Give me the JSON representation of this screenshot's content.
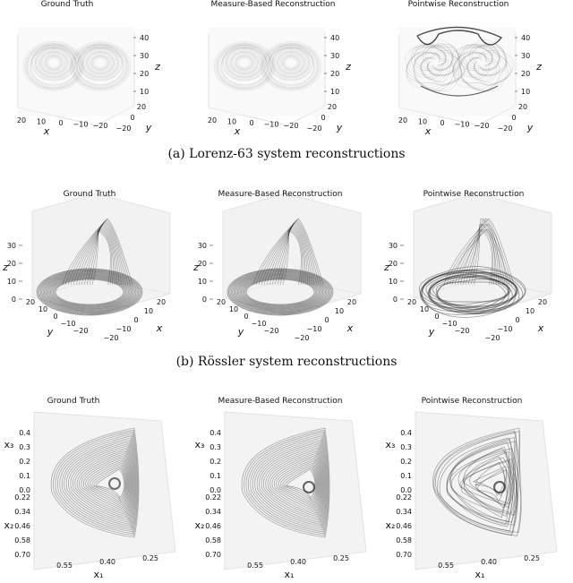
{
  "rows": [
    {
      "caption": "(a) Lorenz-63 system reconstructions",
      "panels": [
        {
          "title": "Ground Truth",
          "kind": "lorenz-gt"
        },
        {
          "title": "Measure-Based Reconstruction",
          "kind": "lorenz-mb"
        },
        {
          "title": "Pointwise Reconstruction",
          "kind": "lorenz-pw"
        }
      ],
      "axes": {
        "x_label": "x",
        "y_label": "y",
        "z_label": "z",
        "x_ticks": [
          "20",
          "10",
          "0",
          "−10",
          "−20"
        ],
        "y_ticks": [
          "−20",
          "0",
          "20"
        ],
        "z_ticks": [
          "40",
          "30",
          "20",
          "10"
        ]
      }
    },
    {
      "caption": "(b) Rössler system reconstructions",
      "panels": [
        {
          "title": "Ground Truth",
          "kind": "rossler-gt"
        },
        {
          "title": "Measure-Based Reconstruction",
          "kind": "rossler-mb"
        },
        {
          "title": "Pointwise Reconstruction",
          "kind": "rossler-pw"
        }
      ],
      "axes": {
        "x_label": "x",
        "y_label": "y",
        "z_label": "z",
        "x_ticks": [
          "−20",
          "−10",
          "0",
          "10",
          "20"
        ],
        "y_ticks": [
          "20",
          "10",
          "0",
          "−10",
          "−20"
        ],
        "z_ticks": [
          "30",
          "20",
          "10",
          "0"
        ]
      }
    },
    {
      "caption": "",
      "panels": [
        {
          "title": "Ground Truth",
          "kind": "tri-gt"
        },
        {
          "title": "Measure-Based Reconstruction",
          "kind": "tri-mb"
        },
        {
          "title": "Pointwise Reconstruction",
          "kind": "tri-pw"
        }
      ],
      "axes": {
        "x_label": "x₁",
        "y_label": "x₂",
        "z_label": "x₃",
        "x_ticks": [
          "0.55",
          "0.40",
          "0.25"
        ],
        "y_ticks": [
          "0.22",
          "0.34",
          "0.46",
          "0.58",
          "0.70"
        ],
        "z_ticks": [
          "0.4",
          "0.3",
          "0.2",
          "0.1",
          "0.0"
        ]
      }
    }
  ]
}
